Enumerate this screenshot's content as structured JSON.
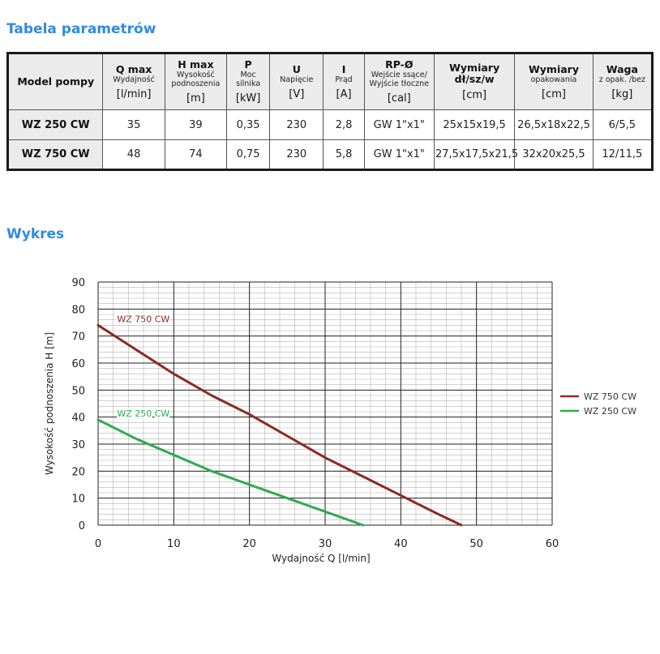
{
  "headings": {
    "table": "Tabela parametrów",
    "chart": "Wykres"
  },
  "table": {
    "columns": [
      {
        "main": "Model pompy",
        "sub": "",
        "unit": ""
      },
      {
        "main": "Q max",
        "sub": "Wydajność",
        "unit": "[l/min]"
      },
      {
        "main": "H max",
        "sub": "Wysokość podnoszenia",
        "unit": "[m]"
      },
      {
        "main": "P",
        "sub": "Moc silnika",
        "unit": "[kW]"
      },
      {
        "main": "U",
        "sub": "Napięcie",
        "unit": "[V]"
      },
      {
        "main": "I",
        "sub": "Prąd",
        "unit": "[A]"
      },
      {
        "main": "RP-Ø",
        "sub": "Wejście ssące/ Wyjście tłoczne",
        "unit": "[cal]"
      },
      {
        "main": "Wymiary dł/sz/w",
        "sub": "",
        "unit": "[cm]"
      },
      {
        "main": "Wymiary",
        "sub": "opakowania",
        "unit": "[cm]"
      },
      {
        "main": "Waga",
        "sub": "z opak. /bez",
        "unit": "[kg]"
      }
    ],
    "rows": [
      [
        "WZ 250 CW",
        "35",
        "39",
        "0,35",
        "230",
        "2,8",
        "GW 1\"x1\"",
        "25x15x19,5",
        "26,5x18x22,5",
        "6/5,5"
      ],
      [
        "WZ 750 CW",
        "48",
        "74",
        "0,75",
        "230",
        "5,8",
        "GW 1\"x1\"",
        "27,5x17,5x21,5",
        "32x20x25,5",
        "12/11,5"
      ]
    ]
  },
  "chart_data": {
    "type": "line",
    "xlabel": "Wydajność Q [l/min]",
    "ylabel": "Wysokość podnoszenia H [m]",
    "xlim": [
      0,
      60
    ],
    "ylim": [
      0,
      90
    ],
    "xticks": [
      0,
      10,
      20,
      30,
      40,
      50,
      60
    ],
    "yticks": [
      0,
      10,
      20,
      30,
      40,
      50,
      60,
      70,
      80,
      90
    ],
    "grid": true,
    "legend": "right",
    "series": [
      {
        "name": "WZ 750 CW",
        "color": "#8b2a22",
        "x": [
          0,
          5,
          10,
          15,
          20,
          25,
          30,
          35,
          40,
          45,
          48
        ],
        "y": [
          74,
          65,
          56,
          48,
          41,
          33,
          25,
          18,
          11,
          4,
          0
        ]
      },
      {
        "name": "WZ 250 CW",
        "color": "#2daa4f",
        "x": [
          0,
          5,
          10,
          15,
          20,
          25,
          30,
          35
        ],
        "y": [
          39,
          32,
          26,
          20,
          15,
          10,
          5,
          0
        ]
      }
    ]
  }
}
